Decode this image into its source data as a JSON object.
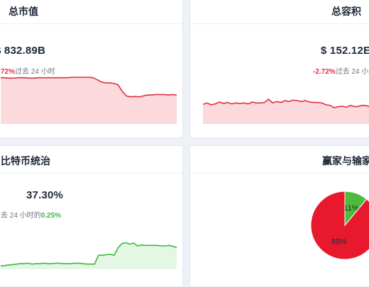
{
  "cards": {
    "market_cap": {
      "title": "总市值",
      "value": "$ 832.89B",
      "change": "72%",
      "change_suffix": "过去 24 小时",
      "chart_data": {
        "type": "area",
        "color": "#e0303f",
        "fill": "#fbd9dd",
        "values": [
          99,
          99,
          98,
          98,
          99,
          99,
          99,
          98,
          98,
          99,
          99,
          99,
          99,
          99,
          99,
          99,
          99,
          100,
          100,
          100,
          100,
          100,
          99,
          95,
          90,
          88,
          88,
          87,
          84,
          70,
          60,
          58,
          59,
          58,
          60,
          62,
          62,
          63,
          63,
          63,
          62,
          63,
          62
        ]
      }
    },
    "volume": {
      "title": "总容积",
      "value": "$ 152.12E",
      "change": "-2.72%",
      "change_suffix": "过去 24 小",
      "chart_data": {
        "type": "area",
        "color": "#e0303f",
        "fill": "#fbd9dd",
        "values": [
          42,
          45,
          41,
          43,
          47,
          44,
          46,
          43,
          45,
          44,
          45,
          43,
          47,
          45,
          45,
          46,
          53,
          45,
          48,
          46,
          50,
          48,
          51,
          50,
          48,
          50,
          47,
          46,
          46,
          45,
          41,
          40,
          35,
          37,
          38,
          36,
          40,
          37,
          38,
          40,
          39,
          36,
          37,
          38,
          36,
          35
        ]
      }
    },
    "btc_dominance": {
      "title": "比特币统治",
      "value": "37.30%",
      "sub_prefix": "去 24 小时的",
      "change": "0.25%",
      "chart_data": {
        "type": "area",
        "color": "#3cb93c",
        "fill": "#e4f7e4",
        "values": [
          7,
          8,
          9,
          10,
          11,
          12,
          12,
          13,
          11,
          12,
          12,
          13,
          12,
          12,
          13,
          13,
          12,
          12,
          12,
          13,
          13,
          12,
          11,
          11,
          11,
          30,
          30,
          31,
          32,
          30,
          46,
          55,
          57,
          54,
          56,
          50,
          52,
          51,
          51,
          51,
          51,
          50,
          50,
          51,
          49,
          47
        ]
      }
    },
    "winners_losers": {
      "title": "赢家与输家",
      "chart_data": {
        "type": "pie",
        "slices": [
          {
            "label": "11%",
            "value": 11,
            "color": "#4cbc3c"
          },
          {
            "label": "89%",
            "value": 89,
            "color": "#e8192c"
          }
        ]
      }
    }
  }
}
